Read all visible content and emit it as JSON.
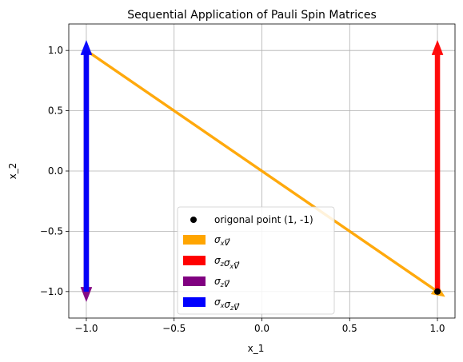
{
  "chart_data": {
    "type": "quiver",
    "title": "Sequential Application of Pauli Spin Matrices",
    "xlabel": "x_1",
    "ylabel": "x_2",
    "xlim": [
      -1.1,
      1.1
    ],
    "ylim": [
      -1.22,
      1.22
    ],
    "xticks": [
      -1.0,
      -0.5,
      0.0,
      0.5,
      1.0
    ],
    "xtick_labels": [
      "−1.0",
      "−0.5",
      "0.0",
      "0.5",
      "1.0"
    ],
    "yticks": [
      1.0,
      0.5,
      0.0,
      -0.5,
      -1.0
    ],
    "ytick_labels": [
      "1.0",
      "0.5",
      "0.0",
      "−0.5",
      "−1.0"
    ],
    "grid": true,
    "legend_position": "lower center",
    "point": {
      "x": 1,
      "y": -1,
      "label": "origonal point (1, -1)",
      "color": "#000000"
    },
    "arrows": [
      {
        "name": "σₓv⃗",
        "label_parts": [
          "σ",
          "x",
          "",
          "",
          "v"
        ],
        "x0": -1,
        "y0": 1,
        "dx": 2,
        "dy": -2,
        "color": "#FFA500",
        "style": "line"
      },
      {
        "name": "σ_zσₓv⃗",
        "label_parts": [
          "σ",
          "z",
          "σ",
          "x",
          "v"
        ],
        "x0": 1,
        "y0": -1,
        "dx": 0,
        "dy": 2,
        "color": "#FF0000",
        "style": "wide"
      },
      {
        "name": "σ_zv⃗",
        "label_parts": [
          "σ",
          "z",
          "",
          "",
          "v"
        ],
        "x0": -1,
        "y0": 1,
        "dx": 0,
        "dy": -2,
        "color": "#800080",
        "style": "wide"
      },
      {
        "name": "σₓσ_zv⃗",
        "label_parts": [
          "σ",
          "x",
          "σ",
          "z",
          "v"
        ],
        "x0": -1,
        "y0": -1,
        "dx": 0,
        "dy": 2,
        "color": "#0000FF",
        "style": "wide"
      }
    ]
  }
}
